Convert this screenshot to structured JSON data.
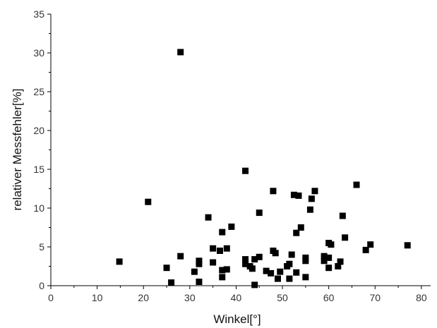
{
  "chart_data": {
    "type": "scatter",
    "title": "",
    "xlabel": "Winkel[°]",
    "ylabel": "relativer Messfehler[%]",
    "xlim": [
      0,
      82
    ],
    "ylim": [
      0,
      35
    ],
    "x_ticks": [
      0,
      10,
      20,
      30,
      40,
      50,
      60,
      70,
      80
    ],
    "y_ticks": [
      0,
      5,
      10,
      15,
      20,
      25,
      30,
      35
    ],
    "x_tick_labels": [
      "0",
      "10",
      "20",
      "30",
      "40",
      "50",
      "60",
      "70",
      "80"
    ],
    "y_tick_labels": [
      "0",
      "5",
      "10",
      "15",
      "20",
      "25",
      "30",
      "35"
    ],
    "grid": false,
    "marker": "square",
    "marker_color": "#000000",
    "points": [
      [
        14.8,
        3.1
      ],
      [
        21.0,
        10.8
      ],
      [
        25.0,
        2.3
      ],
      [
        26.0,
        0.4
      ],
      [
        28.0,
        30.1
      ],
      [
        28.0,
        3.8
      ],
      [
        31.0,
        1.8
      ],
      [
        32.0,
        3.2
      ],
      [
        32.0,
        2.8
      ],
      [
        32.0,
        0.5
      ],
      [
        34.0,
        8.8
      ],
      [
        35.0,
        4.8
      ],
      [
        35.0,
        3.0
      ],
      [
        36.5,
        4.5
      ],
      [
        37.0,
        6.9
      ],
      [
        37.0,
        2.0
      ],
      [
        37.0,
        1.1
      ],
      [
        38.0,
        4.8
      ],
      [
        38.0,
        2.1
      ],
      [
        39.0,
        7.6
      ],
      [
        42.0,
        14.8
      ],
      [
        42.0,
        3.4
      ],
      [
        42.0,
        2.8
      ],
      [
        43.0,
        2.5
      ],
      [
        43.5,
        2.2
      ],
      [
        44.0,
        3.4
      ],
      [
        44.0,
        0.1
      ],
      [
        45.0,
        9.4
      ],
      [
        45.0,
        3.7
      ],
      [
        46.5,
        1.9
      ],
      [
        47.5,
        1.6
      ],
      [
        48.0,
        12.2
      ],
      [
        48.0,
        4.5
      ],
      [
        48.5,
        4.2
      ],
      [
        49.0,
        0.9
      ],
      [
        49.5,
        1.8
      ],
      [
        51.0,
        2.5
      ],
      [
        51.5,
        2.8
      ],
      [
        51.5,
        0.9
      ],
      [
        52.0,
        4.0
      ],
      [
        52.5,
        11.7
      ],
      [
        53.0,
        6.8
      ],
      [
        53.0,
        1.7
      ],
      [
        53.5,
        11.6
      ],
      [
        54.0,
        7.5
      ],
      [
        55.0,
        3.6
      ],
      [
        55.0,
        3.2
      ],
      [
        55.0,
        1.1
      ],
      [
        56.0,
        9.8
      ],
      [
        56.3,
        11.2
      ],
      [
        57.0,
        12.2
      ],
      [
        59.0,
        3.8
      ],
      [
        59.0,
        3.2
      ],
      [
        60.0,
        5.5
      ],
      [
        60.0,
        3.6
      ],
      [
        60.0,
        2.3
      ],
      [
        60.5,
        5.3
      ],
      [
        62.0,
        2.5
      ],
      [
        62.5,
        3.1
      ],
      [
        63.0,
        9.0
      ],
      [
        63.5,
        6.2
      ],
      [
        66.0,
        13.0
      ],
      [
        68.0,
        4.6
      ],
      [
        69.0,
        5.3
      ],
      [
        77.0,
        5.2
      ]
    ]
  }
}
